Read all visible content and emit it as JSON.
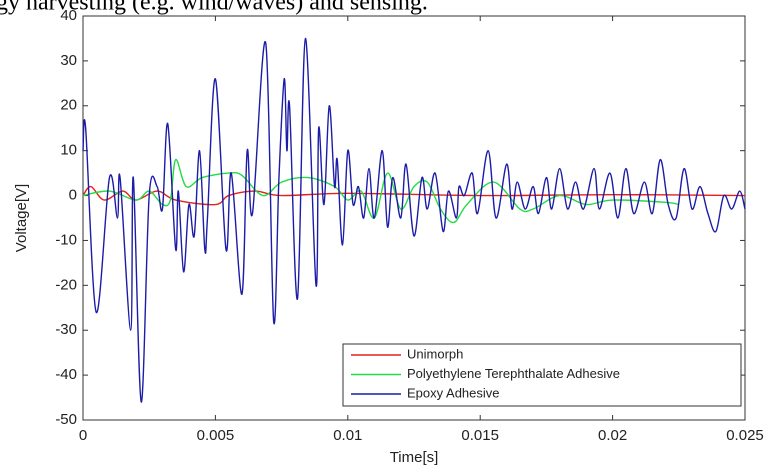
{
  "header_text": "gy harvesting (e.g. wind/waves) and sensing.",
  "chart_data": {
    "type": "line",
    "xlabel": "Time[s]",
    "ylabel": "Voltage[V]",
    "xlim": [
      0,
      0.025
    ],
    "xticks": [
      0,
      0.005,
      0.01,
      0.015,
      0.02,
      0.025
    ],
    "ylim": [
      -50,
      40
    ],
    "yticks": [
      -50,
      -40,
      -30,
      -20,
      -10,
      0,
      10,
      20,
      30,
      40
    ],
    "legend": "lower right",
    "series": [
      {
        "name": "Unimorph",
        "color": "#e3201b",
        "x": [
          0,
          0.0003,
          0.0008,
          0.0015,
          0.002,
          0.0028,
          0.0035,
          0.005,
          0.0055,
          0.0065,
          0.0075,
          0.01,
          0.015,
          0.02,
          0.025
        ],
        "values": [
          0,
          2,
          -1,
          1,
          -1,
          1,
          -1,
          -2,
          0,
          1,
          0,
          0.5,
          0,
          0.2,
          0
        ]
      },
      {
        "name": "Polyethylene Terephthalate Adhesive",
        "color": "#22dd44",
        "x": [
          0,
          0.001,
          0.002,
          0.0025,
          0.003,
          0.0033,
          0.0035,
          0.0039,
          0.0045,
          0.0055,
          0.006,
          0.0068,
          0.0075,
          0.0085,
          0.0095,
          0.01,
          0.0105,
          0.011,
          0.0115,
          0.012,
          0.0125,
          0.013,
          0.0135,
          0.014,
          0.0145,
          0.0155,
          0.0165,
          0.017,
          0.018,
          0.019,
          0.02,
          0.022,
          0.0225
        ],
        "values": [
          0,
          1,
          -1,
          1,
          -2,
          -1,
          8,
          2,
          4,
          5,
          4.5,
          0,
          3,
          4,
          2,
          -1,
          1,
          -5,
          5,
          -3,
          2,
          3,
          -3,
          -6,
          -2,
          3,
          -3,
          -3,
          0,
          -2,
          -1,
          -1.5,
          -2
        ]
      },
      {
        "name": "Epoxy Adhesive",
        "color": "#1c1ca8",
        "x": [
          0,
          0.0001,
          0.0005,
          0.001,
          0.0013,
          0.0014,
          0.0018,
          0.0019,
          0.0022,
          0.0025,
          0.0028,
          0.003,
          0.0032,
          0.0035,
          0.0036,
          0.0038,
          0.004,
          0.0042,
          0.0044,
          0.0046,
          0.0047,
          0.005,
          0.0054,
          0.0056,
          0.006,
          0.0062,
          0.0064,
          0.0069,
          0.0072,
          0.0074,
          0.0076,
          0.0077,
          0.0078,
          0.0081,
          0.0084,
          0.0088,
          0.0089,
          0.0091,
          0.0093,
          0.0095,
          0.0096,
          0.0098,
          0.01,
          0.0102,
          0.0104,
          0.0106,
          0.0108,
          0.011,
          0.0113,
          0.0115,
          0.0117,
          0.012,
          0.0122,
          0.0125,
          0.0128,
          0.013,
          0.0133,
          0.0136,
          0.0138,
          0.0141,
          0.0142,
          0.0144,
          0.0147,
          0.0149,
          0.0153,
          0.0156,
          0.016,
          0.0162,
          0.0164,
          0.0167,
          0.017,
          0.0172,
          0.0175,
          0.0177,
          0.018,
          0.0183,
          0.0186,
          0.0189,
          0.0193,
          0.0195,
          0.0199,
          0.0202,
          0.0205,
          0.0208,
          0.0212,
          0.0215,
          0.0218,
          0.0221,
          0.0224,
          0.0227,
          0.023,
          0.0233,
          0.0236,
          0.0239,
          0.0242,
          0.0245,
          0.0248,
          0.025
        ],
        "values": [
          10,
          15,
          -26,
          4,
          -5,
          4,
          -30,
          4,
          -46,
          0,
          2,
          -3,
          16,
          -12,
          1,
          -17,
          -2,
          -9,
          10,
          -12,
          -5,
          26,
          -12,
          5,
          -22,
          10,
          -4,
          34,
          -28,
          4,
          26,
          10,
          20,
          -23,
          35,
          -20,
          15,
          -2,
          20,
          2,
          8,
          -11,
          10,
          -2,
          2,
          -5,
          6,
          -5,
          10,
          -7,
          4,
          -5,
          7,
          -9,
          4,
          -3,
          5,
          -8,
          1,
          -5,
          2,
          0,
          5,
          -4,
          10,
          -5,
          7,
          -3,
          3,
          -3,
          2,
          -4,
          4,
          -3,
          6,
          -3,
          3,
          -3,
          6,
          -3,
          5,
          -5,
          6,
          -4,
          3,
          -4,
          8,
          -2,
          -5,
          6,
          -3,
          2,
          -4,
          -8,
          0,
          -3,
          1,
          -3
        ]
      }
    ]
  }
}
